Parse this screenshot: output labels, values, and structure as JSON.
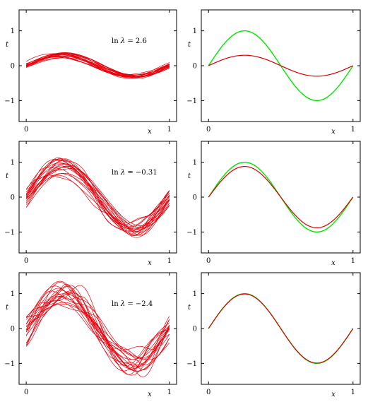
{
  "colors": {
    "samples": "#e8000b",
    "average": "#d40000",
    "truth": "#00e600",
    "axis": "#000000"
  },
  "chart_data": [
    {
      "type": "line",
      "panel": "left",
      "xlabel": "x",
      "ylabel": "t",
      "annotation_ln": "ln",
      "annotation_lambda": "λ",
      "annotation_value": "= 2.6",
      "ln_lambda": 2.6,
      "xlim": [
        -0.05,
        1.05
      ],
      "ylim": [
        -1.6,
        1.6
      ],
      "xticks": [
        {
          "v": 0,
          "label": "0"
        },
        {
          "v": 1,
          "label": "1"
        }
      ],
      "yticks": [
        {
          "v": 1,
          "label": "1"
        },
        {
          "v": 0,
          "label": "0"
        },
        {
          "v": -1,
          "label": "−1"
        }
      ],
      "sample_count": 20,
      "sample_amplitude": 0.3,
      "sample_spread": 0.06,
      "sample_wiggle": 0.015
    },
    {
      "type": "line",
      "panel": "right",
      "xlabel": "x",
      "ylabel": "t",
      "xlim": [
        -0.05,
        1.05
      ],
      "ylim": [
        -1.6,
        1.6
      ],
      "xticks": [
        {
          "v": 0,
          "label": "0"
        },
        {
          "v": 1,
          "label": "1"
        }
      ],
      "yticks": [
        {
          "v": 1,
          "label": "1"
        },
        {
          "v": 0,
          "label": "0"
        },
        {
          "v": -1,
          "label": "−1"
        }
      ],
      "truth_amplitude": 1.0,
      "average_amplitude": 0.3
    },
    {
      "type": "line",
      "panel": "left",
      "xlabel": "x",
      "ylabel": "t",
      "annotation_ln": "ln",
      "annotation_lambda": "λ",
      "annotation_value": "= −0.31",
      "ln_lambda": -0.31,
      "xlim": [
        -0.05,
        1.05
      ],
      "ylim": [
        -1.6,
        1.6
      ],
      "xticks": [
        {
          "v": 0,
          "label": "0"
        },
        {
          "v": 1,
          "label": "1"
        }
      ],
      "yticks": [
        {
          "v": 1,
          "label": "1"
        },
        {
          "v": 0,
          "label": "0"
        },
        {
          "v": -1,
          "label": "−1"
        }
      ],
      "sample_count": 20,
      "sample_amplitude": 0.88,
      "sample_spread": 0.18,
      "sample_wiggle": 0.1
    },
    {
      "type": "line",
      "panel": "right",
      "xlabel": "x",
      "ylabel": "t",
      "xlim": [
        -0.05,
        1.05
      ],
      "ylim": [
        -1.6,
        1.6
      ],
      "xticks": [
        {
          "v": 0,
          "label": "0"
        },
        {
          "v": 1,
          "label": "1"
        }
      ],
      "yticks": [
        {
          "v": 1,
          "label": "1"
        },
        {
          "v": 0,
          "label": "0"
        },
        {
          "v": -1,
          "label": "−1"
        }
      ],
      "truth_amplitude": 1.0,
      "average_amplitude": 0.88
    },
    {
      "type": "line",
      "panel": "left",
      "xlabel": "x",
      "ylabel": "t",
      "annotation_ln": "ln",
      "annotation_lambda": "λ",
      "annotation_value": "= −2.4",
      "ln_lambda": -2.4,
      "xlim": [
        -0.05,
        1.05
      ],
      "ylim": [
        -1.6,
        1.6
      ],
      "xticks": [
        {
          "v": 0,
          "label": "0"
        },
        {
          "v": 1,
          "label": "1"
        }
      ],
      "yticks": [
        {
          "v": 1,
          "label": "1"
        },
        {
          "v": 0,
          "label": "0"
        },
        {
          "v": -1,
          "label": "−1"
        }
      ],
      "sample_count": 20,
      "sample_amplitude": 0.98,
      "sample_spread": 0.26,
      "sample_wiggle": 0.22
    },
    {
      "type": "line",
      "panel": "right",
      "xlabel": "x",
      "ylabel": "t",
      "xlim": [
        -0.05,
        1.05
      ],
      "ylim": [
        -1.6,
        1.6
      ],
      "xticks": [
        {
          "v": 0,
          "label": "0"
        },
        {
          "v": 1,
          "label": "1"
        }
      ],
      "yticks": [
        {
          "v": 1,
          "label": "1"
        },
        {
          "v": 0,
          "label": "0"
        },
        {
          "v": -1,
          "label": "−1"
        }
      ],
      "truth_amplitude": 1.0,
      "average_amplitude": 0.99
    }
  ]
}
